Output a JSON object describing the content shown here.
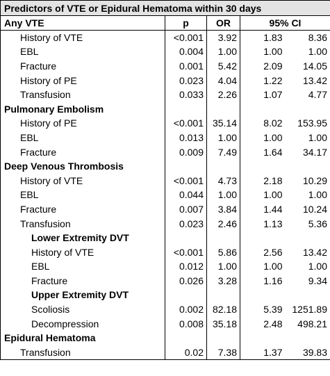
{
  "title": "Predictors of VTE or Epidural Hematoma within 30 days",
  "header": {
    "p": "p",
    "or": "OR",
    "ci": "95% CI"
  },
  "sections": [
    {
      "heading": "Any VTE",
      "rows": [
        [
          "History of VTE",
          "<0.001",
          "3.92",
          "1.83",
          "8.36"
        ],
        [
          "EBL",
          "0.004",
          "1.00",
          "1.00",
          "1.00"
        ],
        [
          "Fracture",
          "0.001",
          "5.42",
          "2.09",
          "14.05"
        ],
        [
          "History of PE",
          "0.023",
          "4.04",
          "1.22",
          "13.42"
        ],
        [
          "Transfusion",
          "0.033",
          "2.26",
          "1.07",
          "4.77"
        ]
      ]
    },
    {
      "heading": "Pulmonary Embolism",
      "rows": [
        [
          "History of PE",
          "<0.001",
          "35.14",
          "8.02",
          "153.95"
        ],
        [
          "EBL",
          "0.013",
          "1.00",
          "1.00",
          "1.00"
        ],
        [
          "Fracture",
          "0.009",
          "7.49",
          "1.64",
          "34.17"
        ]
      ]
    },
    {
      "heading": "Deep Venous Thrombosis",
      "rows": [
        [
          "History of VTE",
          "<0.001",
          "4.73",
          "2.18",
          "10.29"
        ],
        [
          "EBL",
          "0.044",
          "1.00",
          "1.00",
          "1.00"
        ],
        [
          "Fracture",
          "0.007",
          "3.84",
          "1.44",
          "10.24"
        ],
        [
          "Transfusion",
          "0.023",
          "2.46",
          "1.13",
          "5.36"
        ]
      ],
      "subsections": [
        {
          "heading": "Lower Extremity DVT",
          "rows": [
            [
              "History of VTE",
              "<0.001",
              "5.86",
              "2.56",
              "13.42"
            ],
            [
              "EBL",
              "0.012",
              "1.00",
              "1.00",
              "1.00"
            ],
            [
              "Fracture",
              "0.026",
              "3.28",
              "1.16",
              "9.34"
            ]
          ]
        },
        {
          "heading": "Upper Extremity DVT",
          "rows": [
            [
              "Scoliosis",
              "0.002",
              "82.18",
              "5.39",
              "1251.89"
            ],
            [
              "Decompression",
              "0.008",
              "35.18",
              "2.48",
              "498.21"
            ]
          ]
        }
      ]
    },
    {
      "heading": "Epidural Hematoma",
      "rows": [
        [
          "Transfusion",
          "0.02",
          "7.38",
          "1.37",
          "39.83"
        ]
      ]
    }
  ]
}
